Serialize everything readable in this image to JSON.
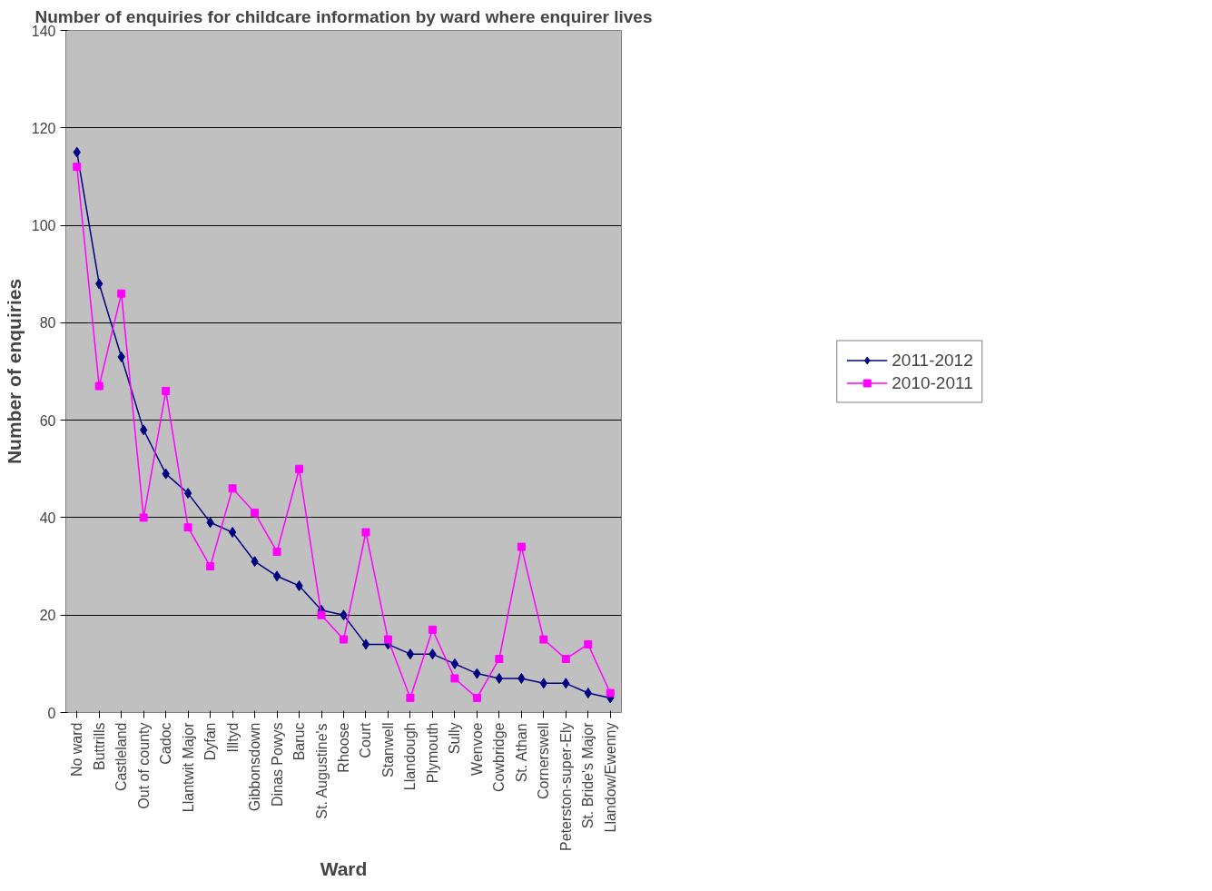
{
  "chart_data": {
    "type": "line",
    "title": "Number of enquiries for childcare information by ward where enquirer lives",
    "xlabel": "Ward",
    "ylabel": "Number of enquiries",
    "categories": [
      "No ward",
      "Buttrills",
      "Castleland",
      "Out of county",
      "Cadoc",
      "Llantwit Major",
      "Dyfan",
      "Illtyd",
      "Gibbonsdown",
      "Dinas Powys",
      "Baruc",
      "St. Augustine's",
      "Rhoose",
      "Court",
      "Stanwell",
      "Llandough",
      "Plymouth",
      "Sully",
      "Wenvoe",
      "Cowbridge",
      "St. Athan",
      "Cornerswell",
      "Peterston-super-Ely",
      "St. Bride's Major",
      "Llandow/Ewenny"
    ],
    "series": [
      {
        "name": "2011-2012",
        "color": "#000080",
        "marker": "diamond",
        "values": [
          115,
          88,
          73,
          58,
          49,
          45,
          39,
          37,
          31,
          28,
          26,
          21,
          20,
          14,
          14,
          12,
          12,
          10,
          8,
          7,
          7,
          6,
          6,
          4,
          3
        ]
      },
      {
        "name": "2010-2011",
        "color": "#ff00ff",
        "marker": "square",
        "values": [
          112,
          67,
          86,
          40,
          66,
          38,
          30,
          46,
          41,
          33,
          50,
          20,
          15,
          37,
          15,
          3,
          17,
          7,
          3,
          11,
          34,
          15,
          11,
          14,
          4
        ]
      }
    ],
    "ylim": [
      0,
      140
    ],
    "yticks": [
      0,
      20,
      40,
      60,
      80,
      100,
      120,
      140
    ],
    "grid": "y",
    "legend": "right",
    "line_style": "solid"
  }
}
